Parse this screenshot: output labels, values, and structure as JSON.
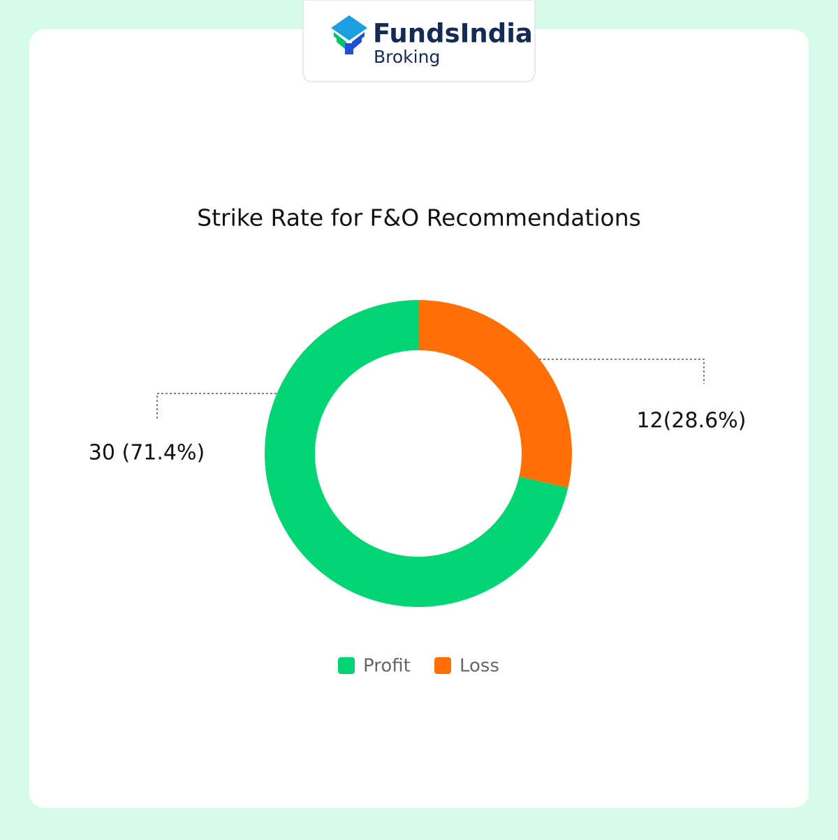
{
  "header": {
    "brand": "FundsIndia",
    "subbrand": "Broking"
  },
  "chart_data": {
    "type": "pie",
    "donut": true,
    "title": "Strike Rate for F&O Recommendations",
    "categories": [
      "Profit",
      "Loss"
    ],
    "values": [
      30,
      12
    ],
    "value_labels": [
      "30 (71.4%)",
      "12(28.6%)"
    ],
    "colors": [
      "#03d575",
      "#ff6f06"
    ],
    "legend": "bottom"
  }
}
